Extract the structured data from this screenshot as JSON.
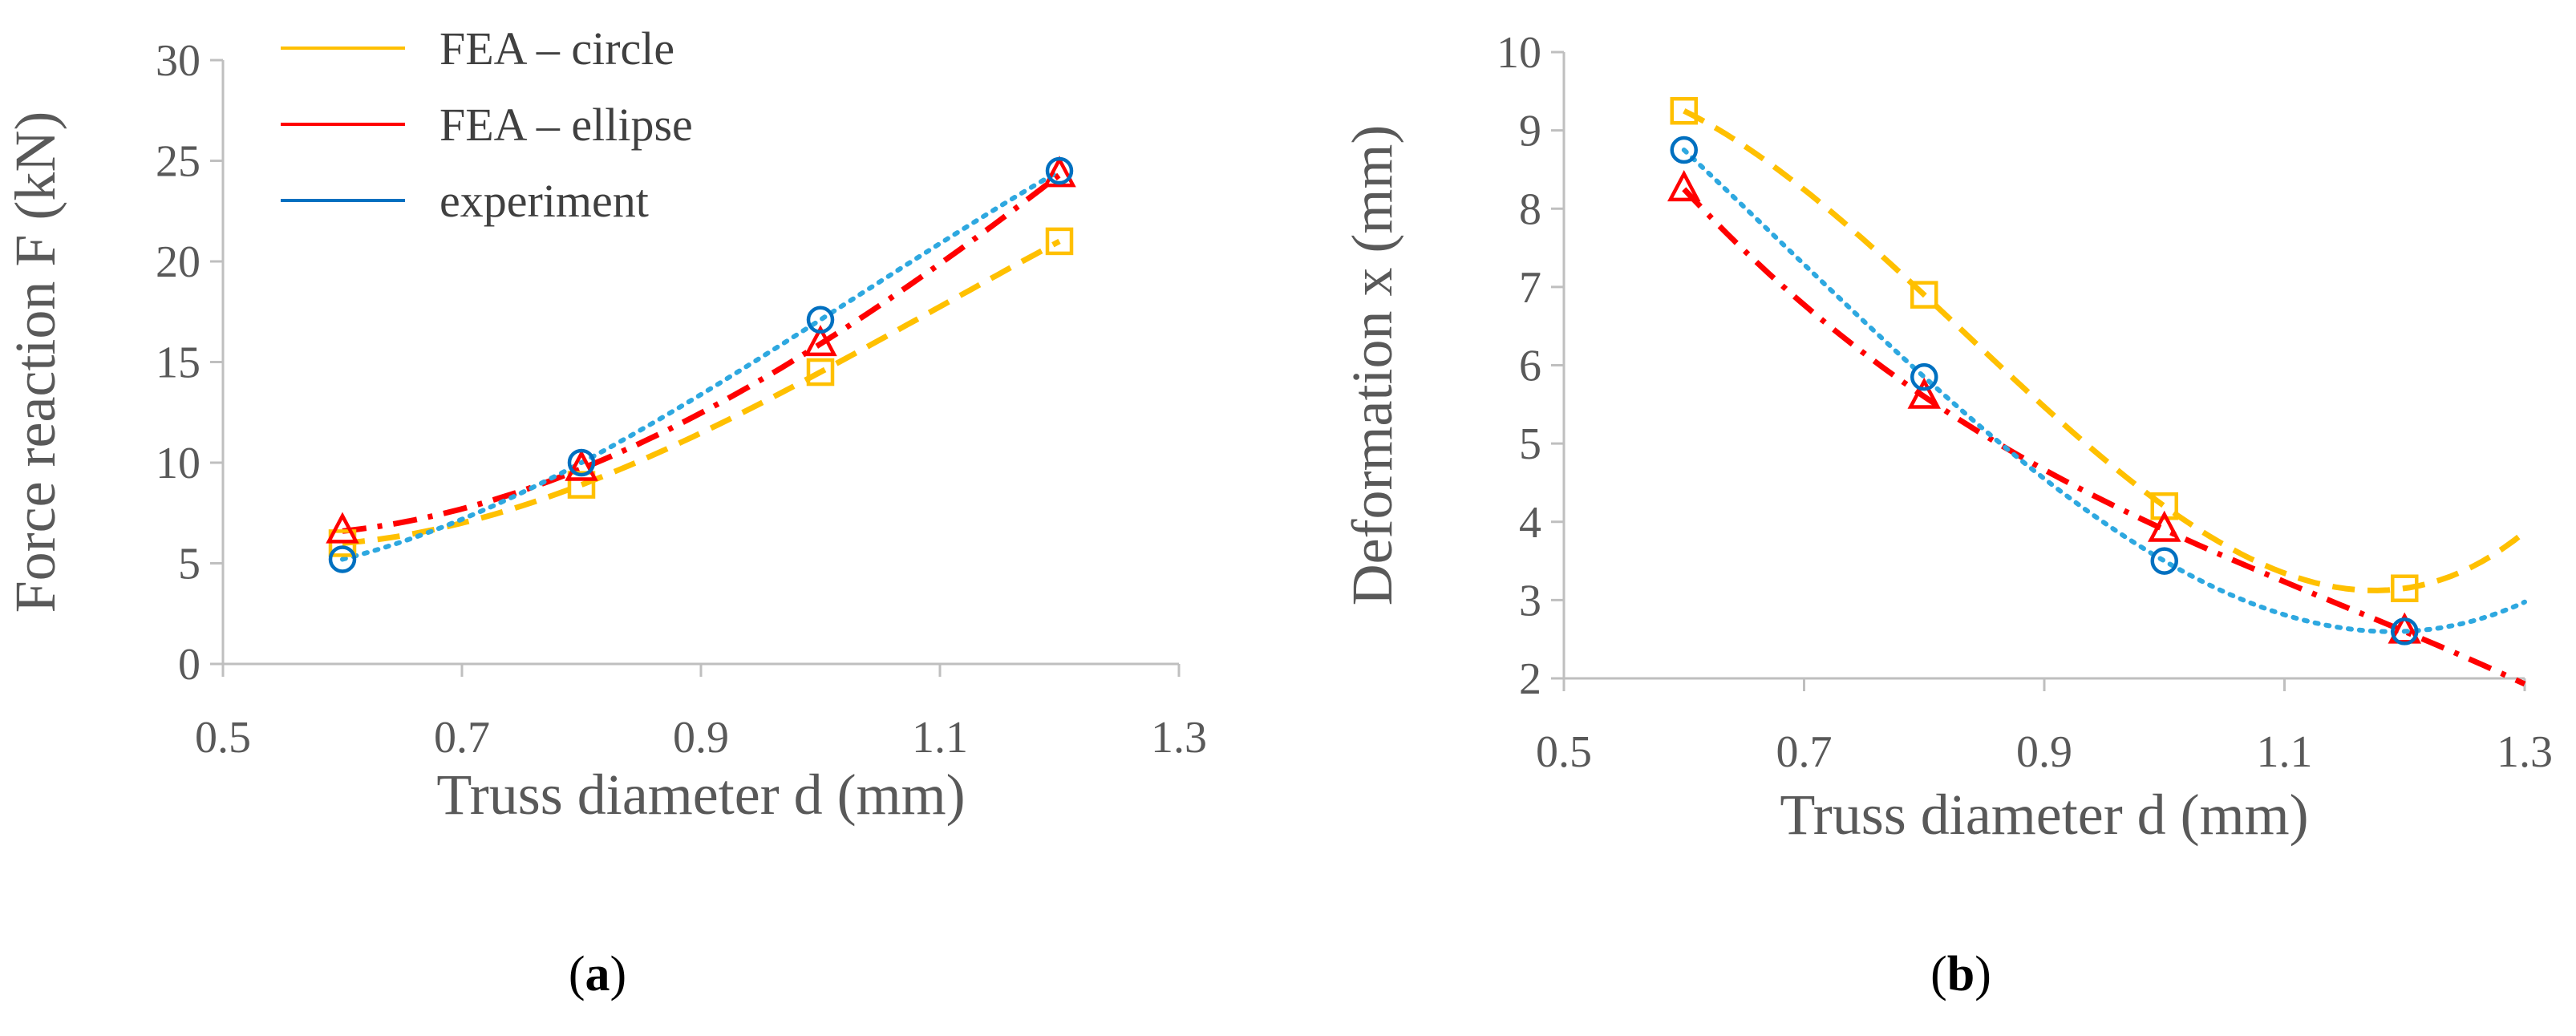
{
  "colors": {
    "circle": "#FFC000",
    "ellipse": "#FF0000",
    "experiment_marker": "#0070C0",
    "experiment_line": "#2EA8E0",
    "axis": "#BFBFBF",
    "text": "#595959"
  },
  "chart_data": [
    {
      "type": "line",
      "panel": "a",
      "panel_label_open": "(",
      "panel_label_close": ")",
      "xlabel": "Truss diameter d (mm)",
      "ylabel": "Force reaction F (kN)",
      "xlim": [
        0.5,
        1.3
      ],
      "ylim": [
        0,
        30
      ],
      "xticks": [
        0.5,
        0.7,
        0.9,
        1.1,
        1.3
      ],
      "xtick_labels": [
        "0.5",
        "0.7",
        "0.9",
        "1.1",
        "1.3"
      ],
      "yticks": [
        0,
        5,
        10,
        15,
        20,
        25,
        30
      ],
      "ytick_labels": [
        "0",
        "5",
        "10",
        "15",
        "20",
        "25",
        "30"
      ],
      "legend_position": "top-left",
      "series": [
        {
          "name": "FEA – circle",
          "key": "circle",
          "marker": "square",
          "line": "dashed",
          "x": [
            0.6,
            0.8,
            1.0,
            1.2
          ],
          "values": [
            6.0,
            8.9,
            14.5,
            21.0
          ]
        },
        {
          "name": "FEA – ellipse",
          "key": "ellipse",
          "marker": "triangle",
          "line": "dashdot",
          "x": [
            0.6,
            0.8,
            1.0,
            1.2
          ],
          "values": [
            6.6,
            9.7,
            15.9,
            24.3
          ]
        },
        {
          "name": "experiment",
          "key": "experiment",
          "marker": "circle",
          "line": "dotted",
          "x": [
            0.6,
            0.8,
            1.0,
            1.2
          ],
          "values": [
            5.2,
            10.0,
            17.1,
            24.5
          ]
        }
      ],
      "trend_ranges": {
        "circle": [
          0.6,
          1.2
        ],
        "ellipse": [
          0.6,
          1.2
        ],
        "experiment": [
          0.6,
          1.2
        ]
      }
    },
    {
      "type": "line",
      "panel": "b",
      "panel_label_open": "(",
      "panel_label_close": ")",
      "xlabel": "Truss diameter d (mm)",
      "ylabel": "Deformation x (mm)",
      "xlim": [
        0.5,
        1.3
      ],
      "ylim": [
        2,
        10
      ],
      "xticks": [
        0.5,
        0.7,
        0.9,
        1.1,
        1.3
      ],
      "xtick_labels": [
        "0.5",
        "0.7",
        "0.9",
        "1.1",
        "1.3"
      ],
      "yticks": [
        2,
        3,
        4,
        5,
        6,
        7,
        8,
        9,
        10
      ],
      "ytick_labels": [
        "2",
        "3",
        "4",
        "5",
        "6",
        "7",
        "8",
        "9",
        "10"
      ],
      "series": [
        {
          "name": "FEA – circle",
          "key": "circle",
          "marker": "square",
          "line": "dashed",
          "x": [
            0.6,
            0.8,
            1.0,
            1.2
          ],
          "values": [
            9.25,
            6.9,
            4.2,
            3.15
          ]
        },
        {
          "name": "FEA – ellipse",
          "key": "ellipse",
          "marker": "triangle",
          "line": "dashdot",
          "x": [
            0.6,
            0.8,
            1.0,
            1.2
          ],
          "values": [
            8.25,
            5.6,
            3.9,
            2.6
          ]
        },
        {
          "name": "experiment",
          "key": "experiment",
          "marker": "circle",
          "line": "dotted",
          "x": [
            0.6,
            0.8,
            1.0,
            1.2
          ],
          "values": [
            8.75,
            5.85,
            3.5,
            2.6
          ]
        }
      ],
      "trend_ranges": {
        "circle": [
          0.6,
          1.3
        ],
        "ellipse": [
          0.6,
          1.3
        ],
        "experiment": [
          0.6,
          1.3
        ]
      }
    }
  ]
}
